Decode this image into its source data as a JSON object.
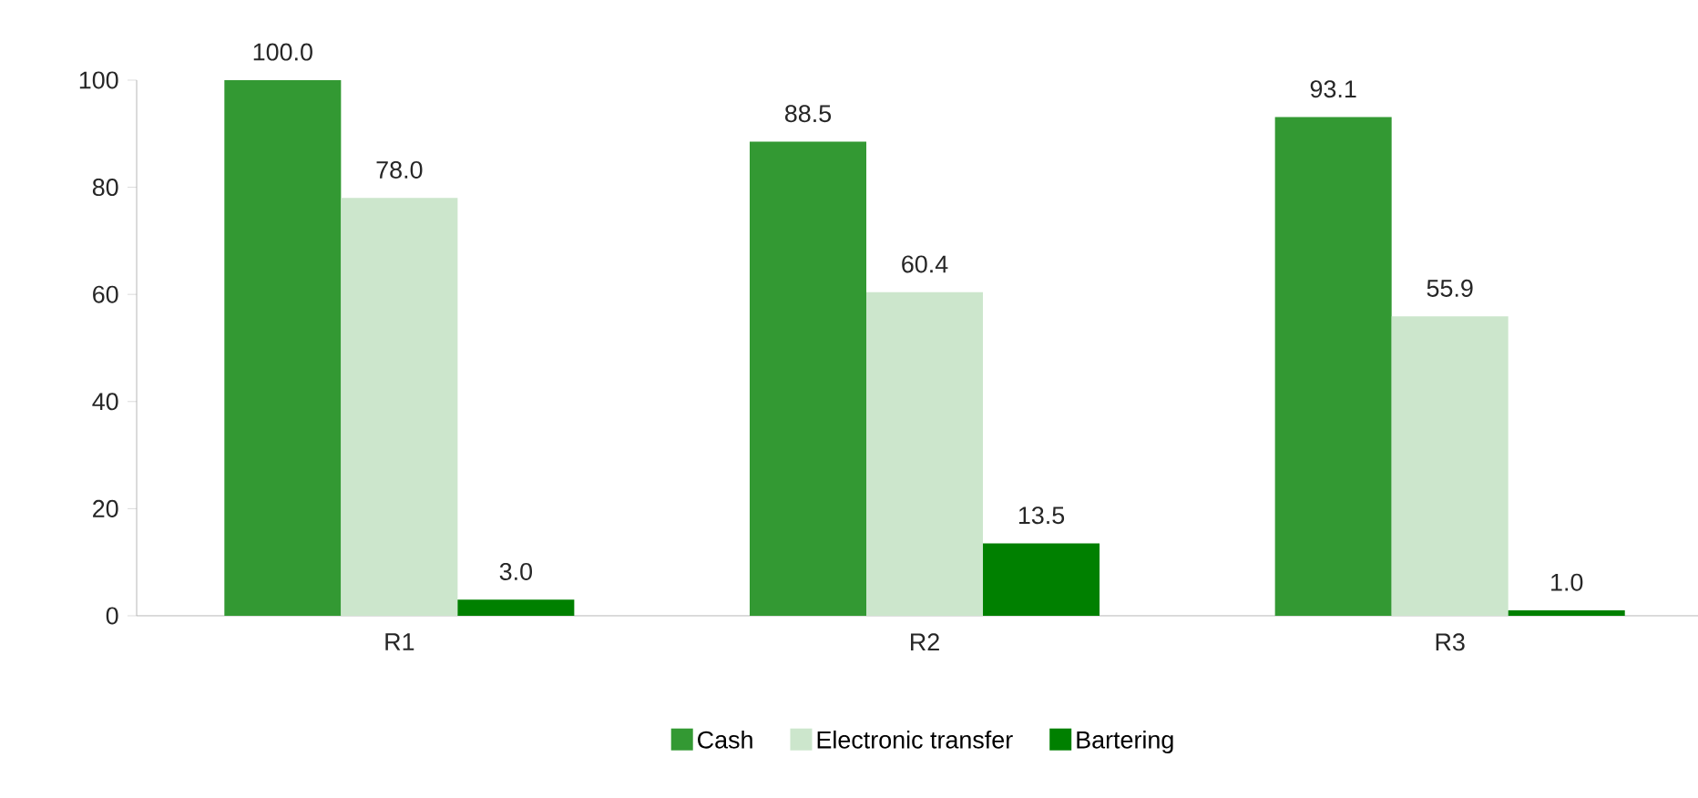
{
  "chart_data": {
    "type": "bar",
    "categories": [
      "R1",
      "R2",
      "R3"
    ],
    "series": [
      {
        "name": "Cash",
        "color": "#339933",
        "values": [
          100.0,
          88.5,
          93.1
        ],
        "value_labels": [
          "100.0",
          "88.5",
          "93.1"
        ]
      },
      {
        "name": "Electronic transfer",
        "color": "#cce6cc",
        "values": [
          78.0,
          60.4,
          55.9
        ],
        "value_labels": [
          "78.0",
          "60.4",
          "55.9"
        ]
      },
      {
        "name": "Bartering",
        "color": "#008000",
        "values": [
          3.0,
          13.5,
          1.0
        ],
        "value_labels": [
          "3.0",
          "13.5",
          "1.0"
        ]
      }
    ],
    "ylim": [
      0,
      100
    ],
    "yticks": [
      0,
      20,
      40,
      60,
      80,
      100
    ],
    "grid": false,
    "legend": "bottom"
  }
}
